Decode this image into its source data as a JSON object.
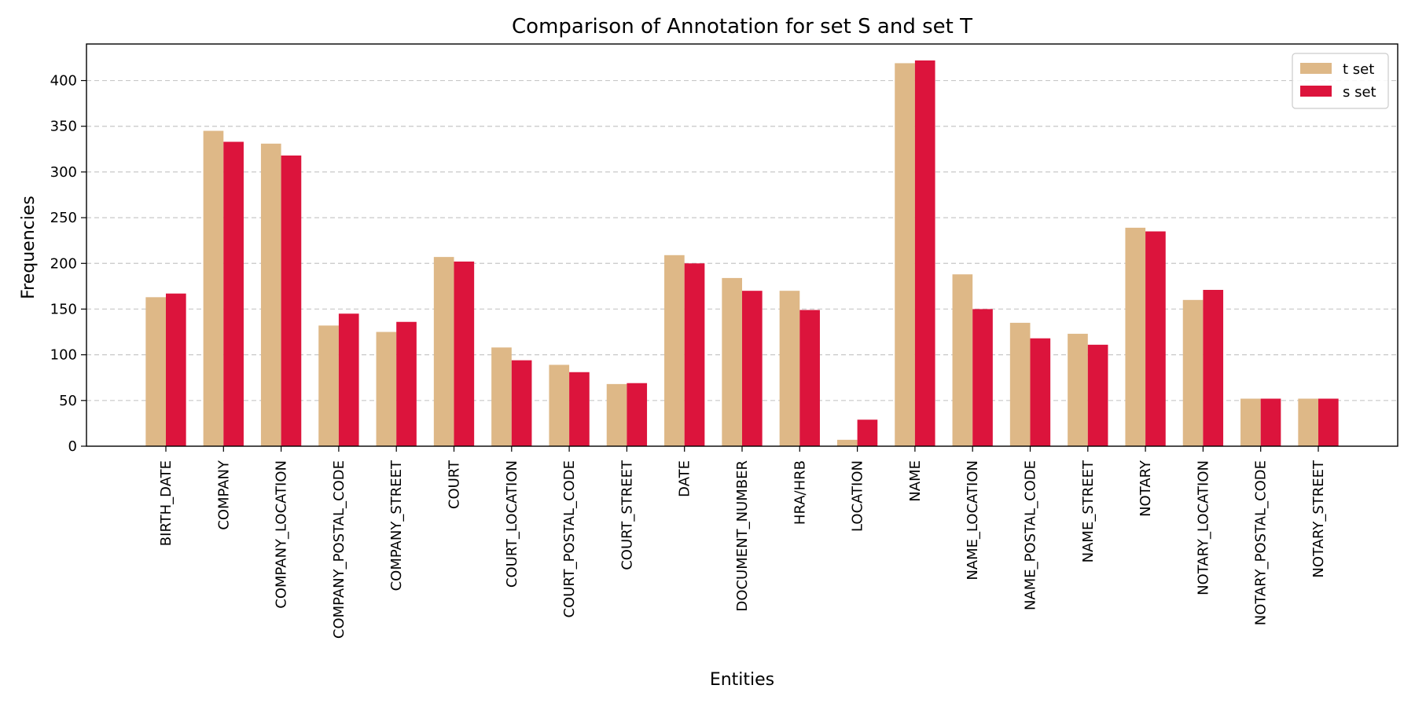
{
  "chart_data": {
    "type": "bar",
    "title": "Comparison of Annotation for set S and set T",
    "xlabel": "Entities",
    "ylabel": "Frequencies",
    "ylim": [
      0,
      440
    ],
    "yticks": [
      0,
      50,
      100,
      150,
      200,
      250,
      300,
      350,
      400
    ],
    "grid": "y-dashed",
    "legend_position": "top-right",
    "categories": [
      "BIRTH_DATE",
      "COMPANY",
      "COMPANY_LOCATION",
      "COMPANY_POSTAL_CODE",
      "COMPANY_STREET",
      "COURT",
      "COURT_LOCATION",
      "COURT_POSTAL_CODE",
      "COURT_STREET",
      "DATE",
      "DOCUMENT_NUMBER",
      "HRA/HRB",
      "LOCATION",
      "NAME",
      "NAME_LOCATION",
      "NAME_POSTAL_CODE",
      "NAME_STREET",
      "NOTARY",
      "NOTARY_LOCATION",
      "NOTARY_POSTAL_CODE",
      "NOTARY_STREET"
    ],
    "series": [
      {
        "name": "t set",
        "color": "#deb887",
        "values": [
          163,
          345,
          331,
          132,
          125,
          207,
          108,
          89,
          68,
          209,
          184,
          170,
          7,
          419,
          188,
          135,
          123,
          239,
          160,
          52,
          52
        ]
      },
      {
        "name": "s set",
        "color": "#dc143c",
        "values": [
          167,
          333,
          318,
          145,
          136,
          202,
          94,
          81,
          69,
          200,
          170,
          149,
          29,
          422,
          150,
          118,
          111,
          235,
          171,
          52,
          52
        ]
      }
    ]
  }
}
